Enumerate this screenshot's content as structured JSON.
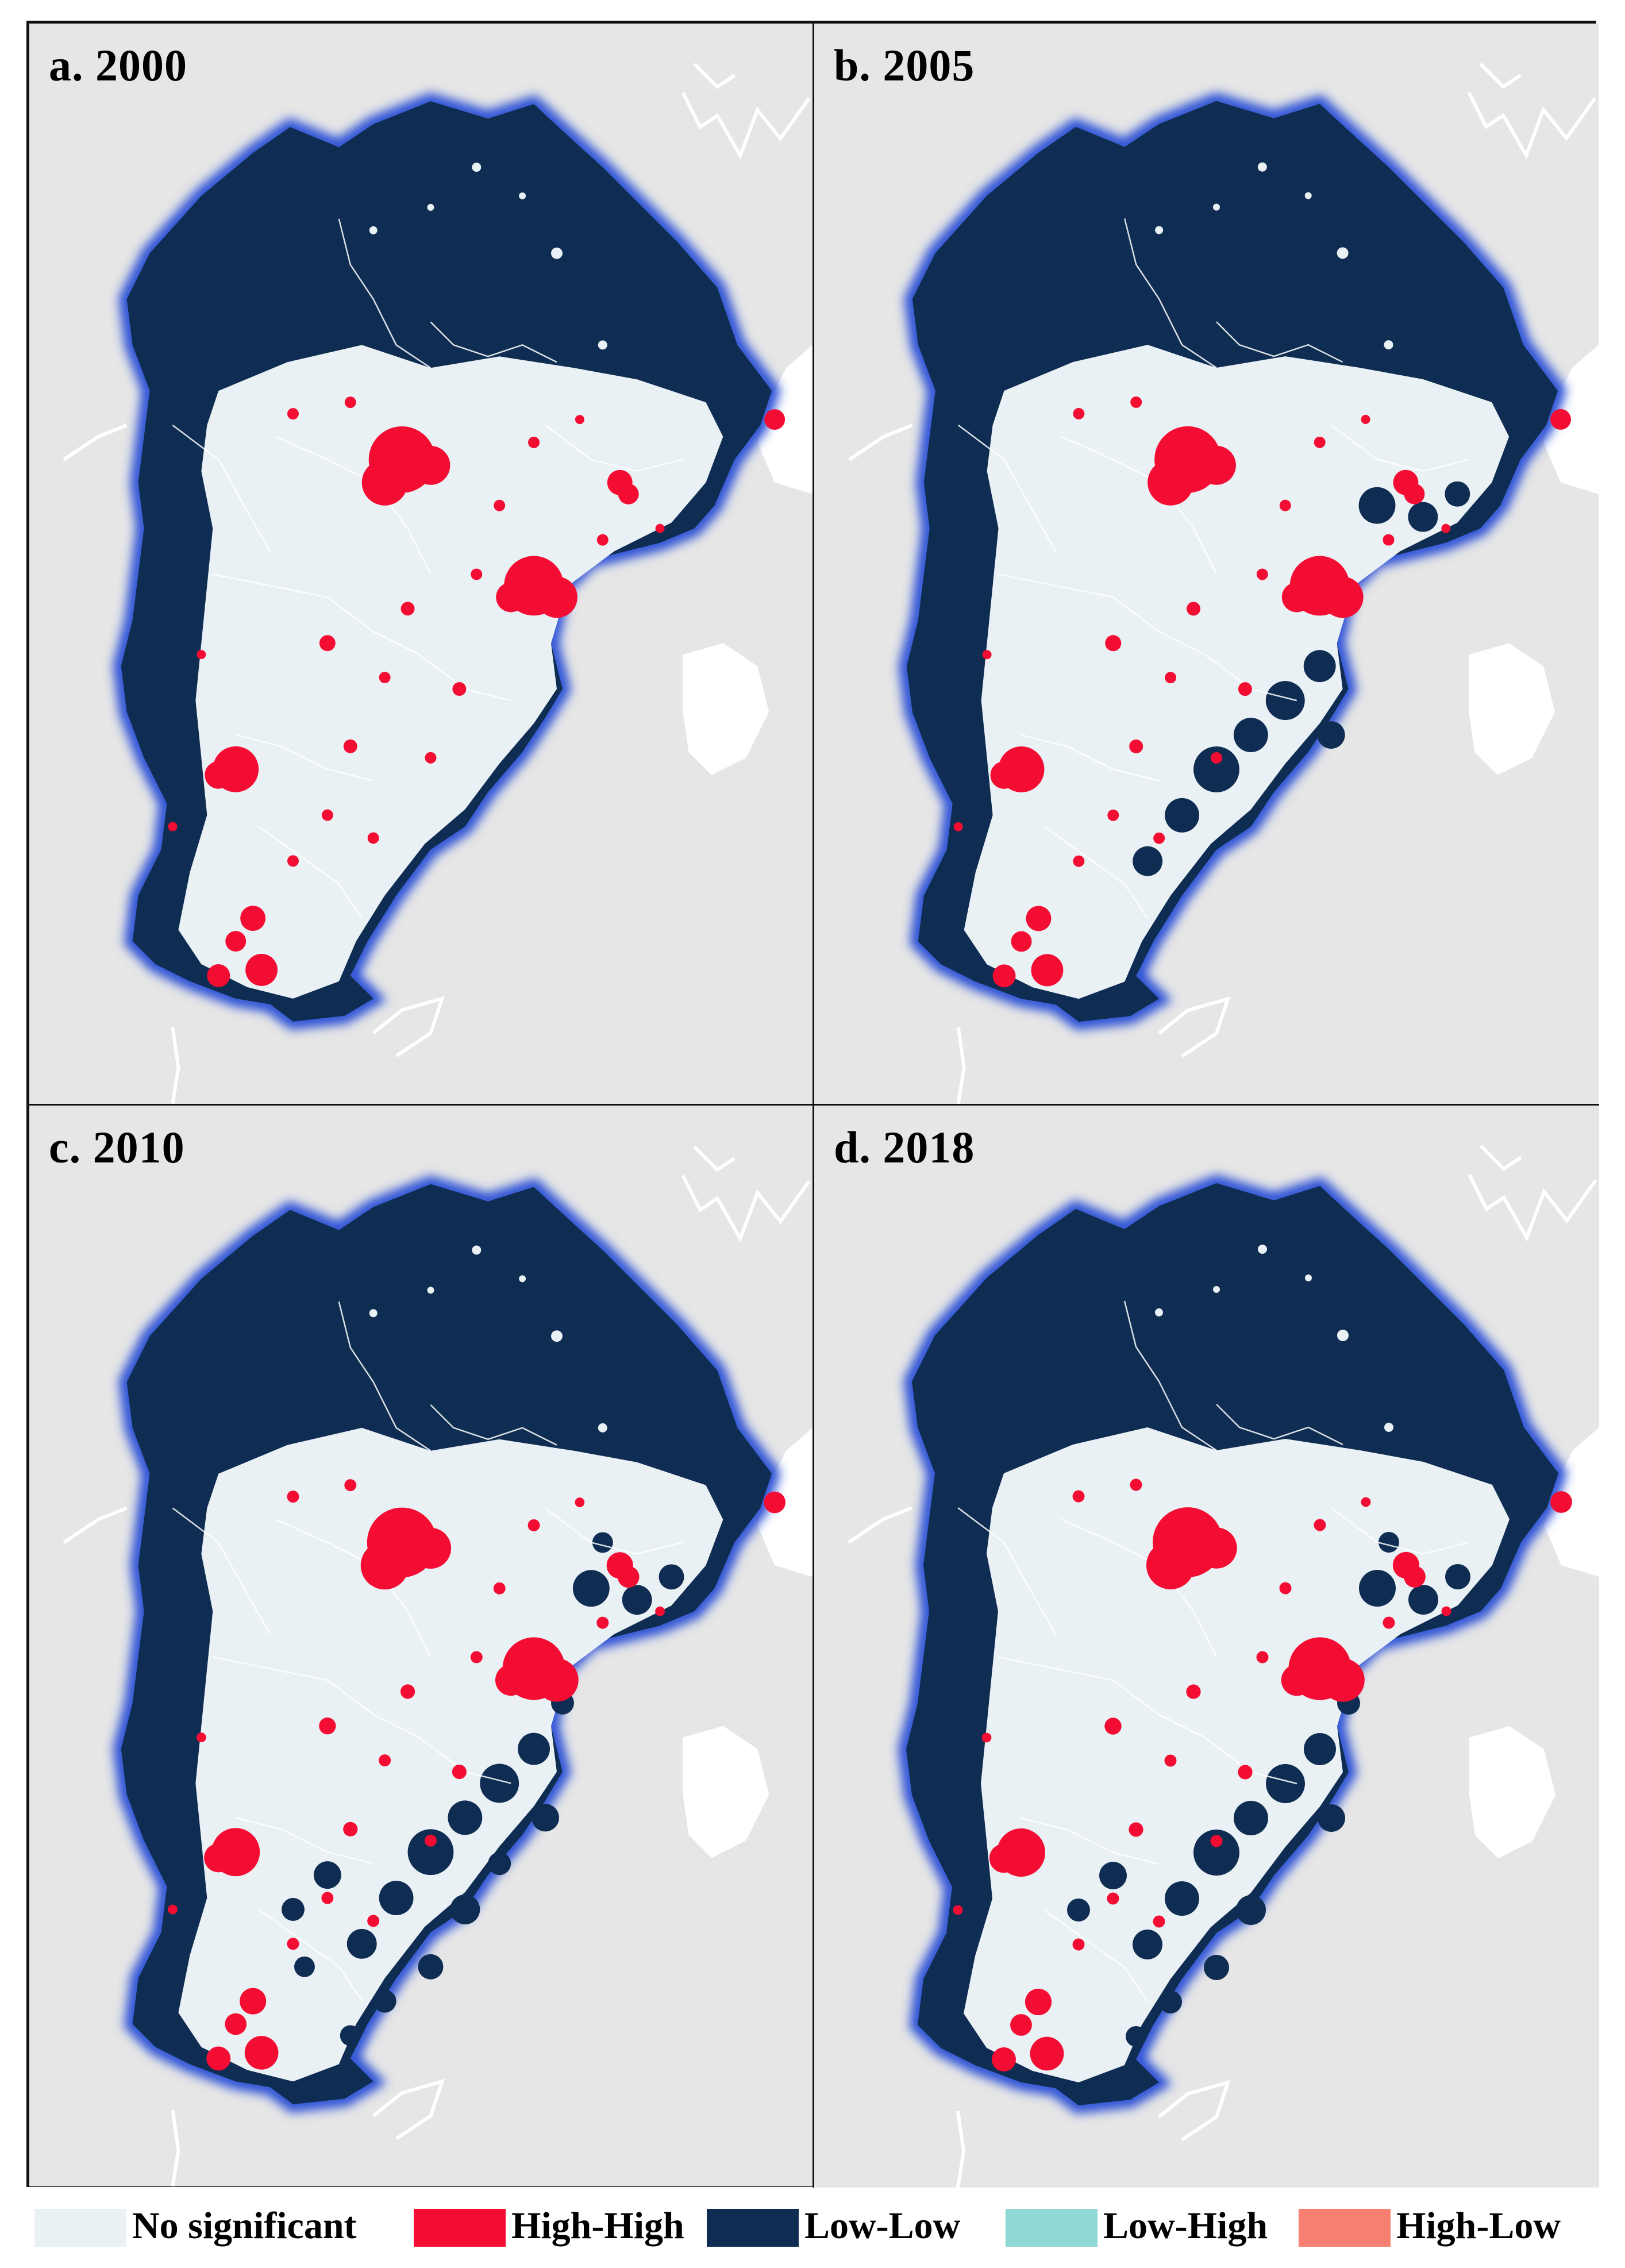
{
  "panels": [
    {
      "title": "a. 2000",
      "ll_coverage": 0.45,
      "hh_scale": 1.0
    },
    {
      "title": "b. 2005",
      "ll_coverage": 0.65,
      "hh_scale": 1.0
    },
    {
      "title": "c. 2010",
      "ll_coverage": 0.85,
      "hh_scale": 1.05
    },
    {
      "title": "d. 2018",
      "ll_coverage": 0.82,
      "hh_scale": 1.05
    }
  ],
  "legend": [
    {
      "label": "No significant",
      "color": "#eaf1f5"
    },
    {
      "label": "High-High",
      "color": "#f40d32"
    },
    {
      "label": "Low-Low",
      "color": "#0f2d52"
    },
    {
      "label": "Low-High",
      "color": "#8ed9d6"
    },
    {
      "label": "High-Low",
      "color": "#f77f71"
    }
  ],
  "colors": {
    "background": "#e6e6e6",
    "glow": "#2a4fd6",
    "boundaries": "#ffffff"
  }
}
